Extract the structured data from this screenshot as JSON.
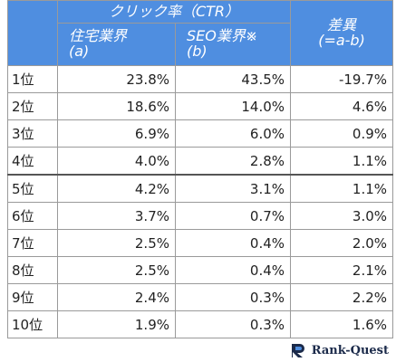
{
  "table": {
    "header": {
      "group": "クリック率（CTR）",
      "col_a": "住宅業界",
      "col_a_sub": "(a)",
      "col_b": "SEO業界※",
      "col_b_sub": "(b)",
      "diff": "差異",
      "diff_sub": "(=a-b)"
    },
    "rows": [
      [
        "1位",
        "23.8%",
        "43.5%",
        "-19.7%"
      ],
      [
        "2位",
        "18.6%",
        "14.0%",
        "4.6%"
      ],
      [
        "3位",
        "6.9%",
        "6.0%",
        "0.9%"
      ],
      [
        "4位",
        "4.0%",
        "2.8%",
        "1.1%"
      ],
      [
        "5位",
        "4.2%",
        "3.1%",
        "1.1%"
      ],
      [
        "6位",
        "3.7%",
        "0.7%",
        "3.0%"
      ],
      [
        "7位",
        "2.5%",
        "0.4%",
        "2.0%"
      ],
      [
        "8位",
        "2.5%",
        "0.4%",
        "2.1%"
      ],
      [
        "9位",
        "2.4%",
        "0.3%",
        "2.2%"
      ],
      [
        "10位",
        "1.9%",
        "0.3%",
        "1.6%"
      ]
    ]
  },
  "logo": {
    "text": "Rank-Quest"
  }
}
